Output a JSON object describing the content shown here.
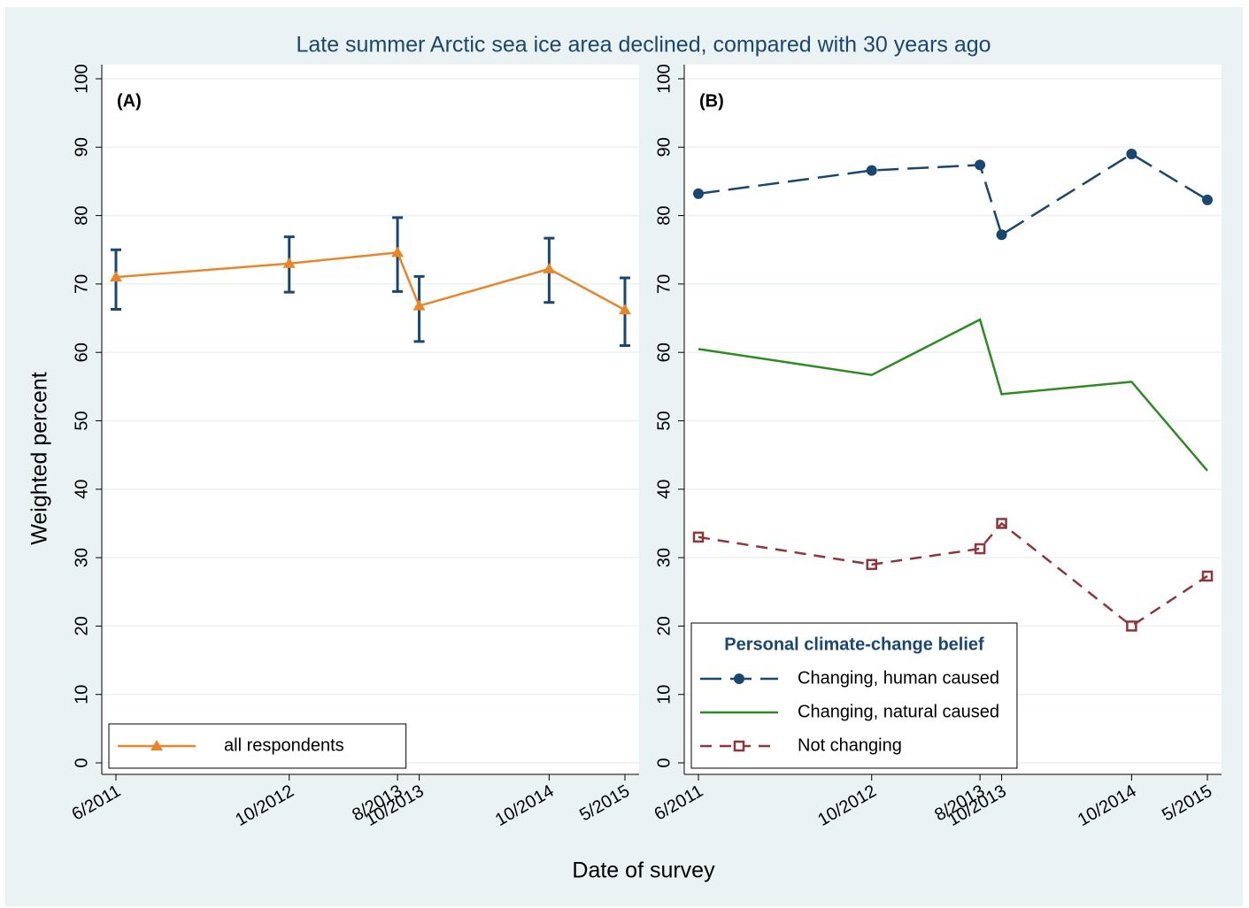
{
  "title": "Late summer Arctic sea ice area declined, compared with 30 years ago",
  "xlabel": "Date of survey",
  "ylabel": "Weighted percent",
  "chart_data": [
    {
      "type": "line",
      "panel_label": "(A)",
      "x": [
        "6/2011",
        "10/2012",
        "8/2013",
        "10/2013",
        "10/2014",
        "5/2015"
      ],
      "ylim": [
        0,
        100
      ],
      "yticks": [
        0,
        10,
        20,
        30,
        40,
        50,
        60,
        70,
        80,
        90,
        100
      ],
      "grid": true,
      "legend": "bottom-left",
      "series": [
        {
          "name": "all respondents",
          "color": "#e8862c",
          "marker": "triangle",
          "dash": "solid",
          "values": [
            71,
            73,
            74.6,
            66.8,
            72.2,
            66.2
          ],
          "ci_low": [
            66.3,
            68.8,
            68.9,
            61.6,
            67.3,
            61
          ],
          "ci_high": [
            75,
            76.9,
            79.7,
            71.1,
            76.7,
            70.9
          ],
          "ci_color": "#1a476f"
        }
      ]
    },
    {
      "type": "line",
      "panel_label": "(B)",
      "x": [
        "6/2011",
        "10/2012",
        "8/2013",
        "10/2013",
        "10/2014",
        "5/2015"
      ],
      "ylim": [
        0,
        100
      ],
      "yticks": [
        0,
        10,
        20,
        30,
        40,
        50,
        60,
        70,
        80,
        90,
        100
      ],
      "grid": true,
      "legend": "bottom-left",
      "legend_title": "Personal climate-change belief",
      "series": [
        {
          "name": "Changing, human caused",
          "color": "#1a476f",
          "marker": "circle",
          "dash": "long",
          "values": [
            83.2,
            86.6,
            87.4,
            77.2,
            89,
            82.3
          ]
        },
        {
          "name": "Changing, natural caused",
          "color": "#2f8a24",
          "marker": "none",
          "dash": "solid",
          "values": [
            60.5,
            56.7,
            64.8,
            53.9,
            55.7,
            42.7
          ]
        },
        {
          "name": "Not changing",
          "color": "#90353b",
          "marker": "square-hollow",
          "dash": "short",
          "values": [
            33,
            29,
            31.3,
            35,
            20,
            27.3
          ]
        }
      ]
    }
  ]
}
